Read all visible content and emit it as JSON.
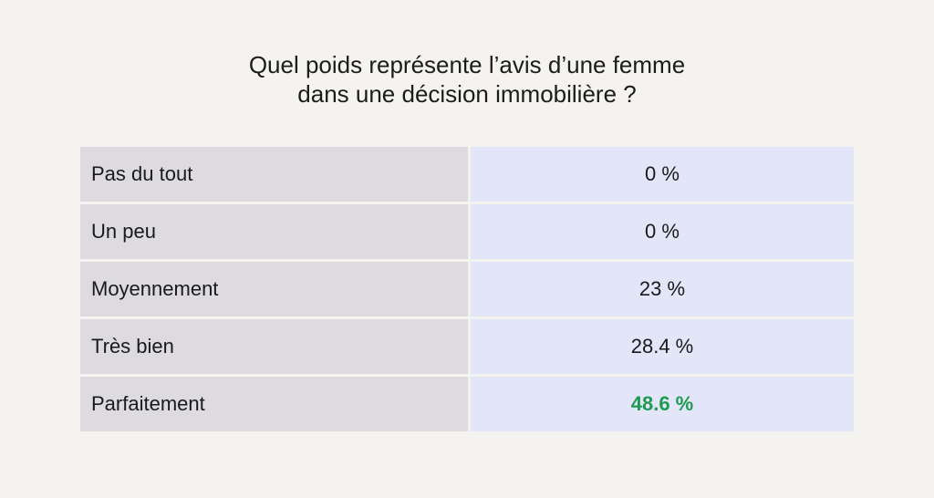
{
  "chart_data": {
    "type": "table",
    "title": [
      "Quel poids représente l’avis d’une femme",
      "dans une décision immobilière ?"
    ],
    "rows": [
      {
        "label": "Pas du tout",
        "value": 0,
        "display": "0 %"
      },
      {
        "label": "Un peu",
        "value": 0,
        "display": "0 %"
      },
      {
        "label": "Moyennement",
        "value": 23,
        "display": "23 %"
      },
      {
        "label": "Très bien",
        "value": 28.4,
        "display": "28.4 %"
      },
      {
        "label": "Parfaitement",
        "value": 48.6,
        "display": "48.6 %",
        "highlight": true
      }
    ],
    "highlight_color": "#1e9a52"
  }
}
